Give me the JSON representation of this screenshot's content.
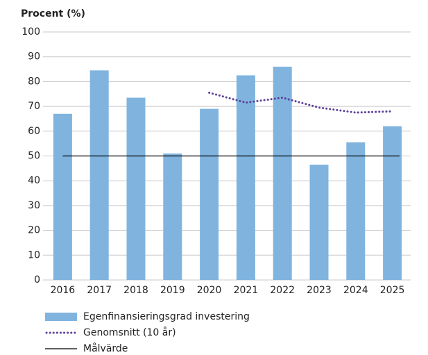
{
  "chart_data": {
    "type": "bar",
    "y_label": "Procent (%)",
    "categories": [
      "2016",
      "2017",
      "2018",
      "2019",
      "2020",
      "2021",
      "2022",
      "2023",
      "2024",
      "2025"
    ],
    "series": [
      {
        "name": "Egenfinansieringsgrad investering",
        "type": "bar",
        "color": "#80b4df",
        "values": [
          67,
          84.5,
          73.5,
          51,
          69,
          82.5,
          86,
          46.5,
          55.5,
          62
        ]
      },
      {
        "name": "Genomsnitt (10 år)",
        "type": "line",
        "color": "#5b3f99",
        "values": [
          null,
          null,
          null,
          null,
          75.5,
          71.5,
          73.5,
          69.5,
          67.5,
          68
        ]
      }
    ],
    "target": {
      "name": "Målvärde",
      "value": 50,
      "color": "#000000"
    },
    "ylim": [
      0,
      100
    ],
    "yticks": [
      0,
      10,
      20,
      30,
      40,
      50,
      60,
      70,
      80,
      90,
      100
    ],
    "grid": true
  }
}
